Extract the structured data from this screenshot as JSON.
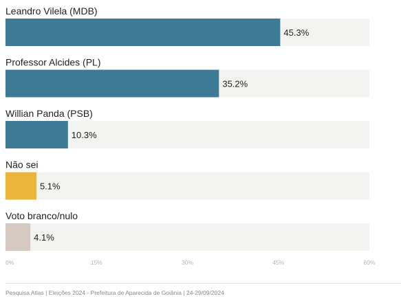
{
  "chart_data": {
    "type": "bar",
    "orientation": "horizontal",
    "categories": [
      "Leandro Vilela (MDB)",
      "Professor Alcides (PL)",
      "Willian Panda (PSB)",
      "Não sei",
      "Voto branco/nulo"
    ],
    "values": [
      45.3,
      35.2,
      10.3,
      5.1,
      4.1
    ],
    "value_labels": [
      "45.3%",
      "35.2%",
      "10.3%",
      "5.1%",
      "4.1%"
    ],
    "bar_colors": [
      "#3d7a96",
      "#3d7a96",
      "#3d7a96",
      "#ebb53c",
      "#d6c9c2"
    ],
    "track_color": "#f3f3f1",
    "xlim": [
      0,
      60
    ],
    "x_ticks": [
      0,
      15,
      30,
      45,
      60
    ],
    "x_tick_labels": [
      "0%",
      "15%",
      "30%",
      "45%",
      "60%"
    ],
    "grid": false,
    "legend": "none"
  },
  "footer": {
    "source": "Pesquisa Atlas",
    "separator_1": "|",
    "subject": "Eleições 2024 - Prefeitura de Aparecida de Goiânia",
    "separator_2": "|",
    "date": "24-29/09/2024"
  }
}
